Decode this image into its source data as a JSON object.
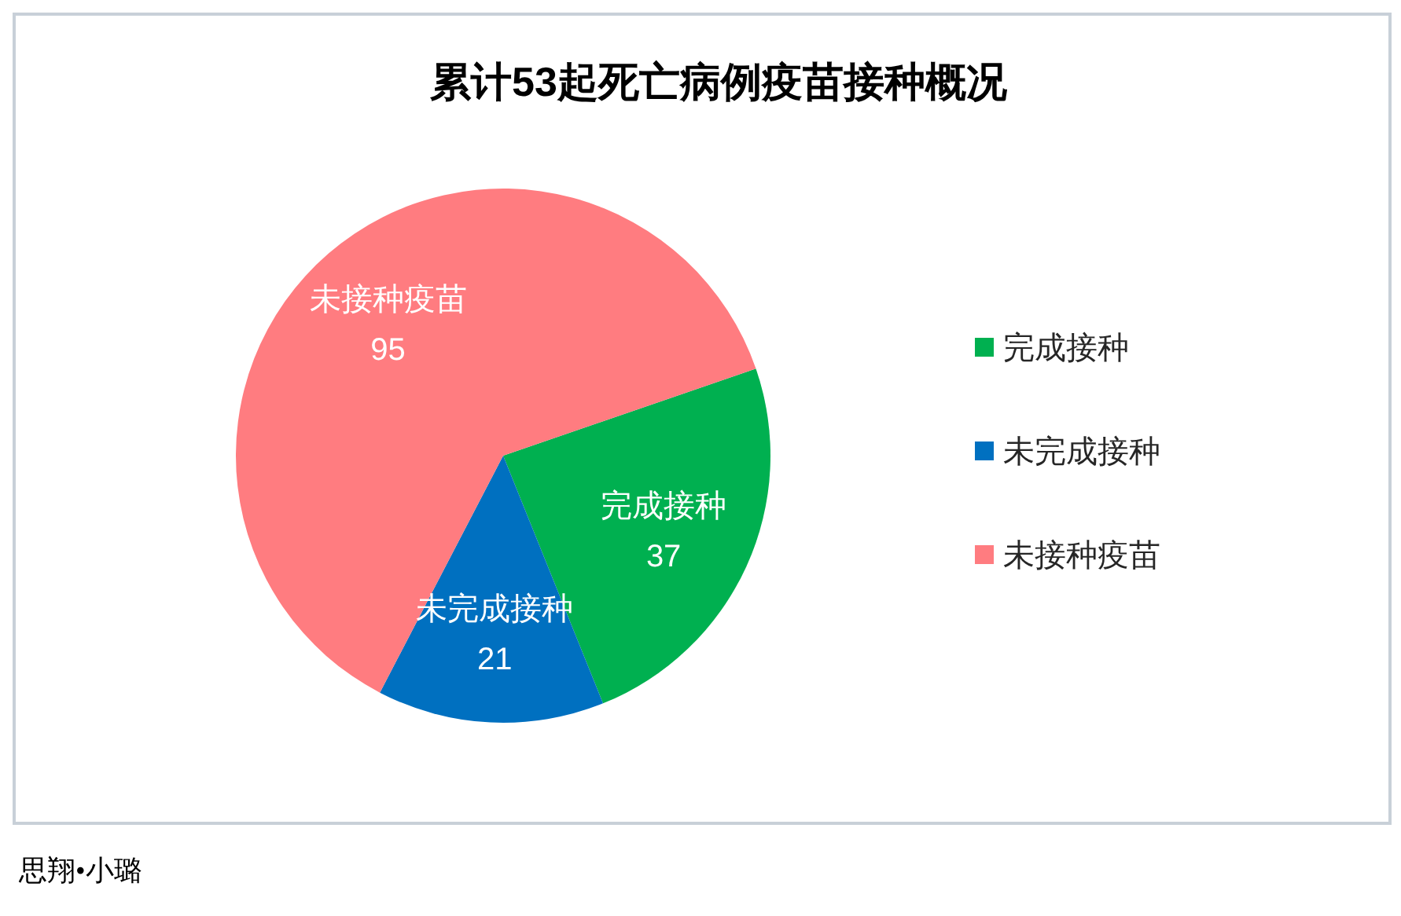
{
  "chart_data": {
    "type": "pie",
    "title": "累计53起死亡病例疫苗接种概况",
    "categories": [
      "完成接种",
      "未完成接种",
      "未接种疫苗"
    ],
    "values": [
      37,
      21,
      95
    ],
    "colors": [
      "#00b050",
      "#0070c0",
      "#ff7c80"
    ],
    "data_labels": true,
    "legend": "right",
    "annotations": [
      "思翔•小璐"
    ]
  }
}
